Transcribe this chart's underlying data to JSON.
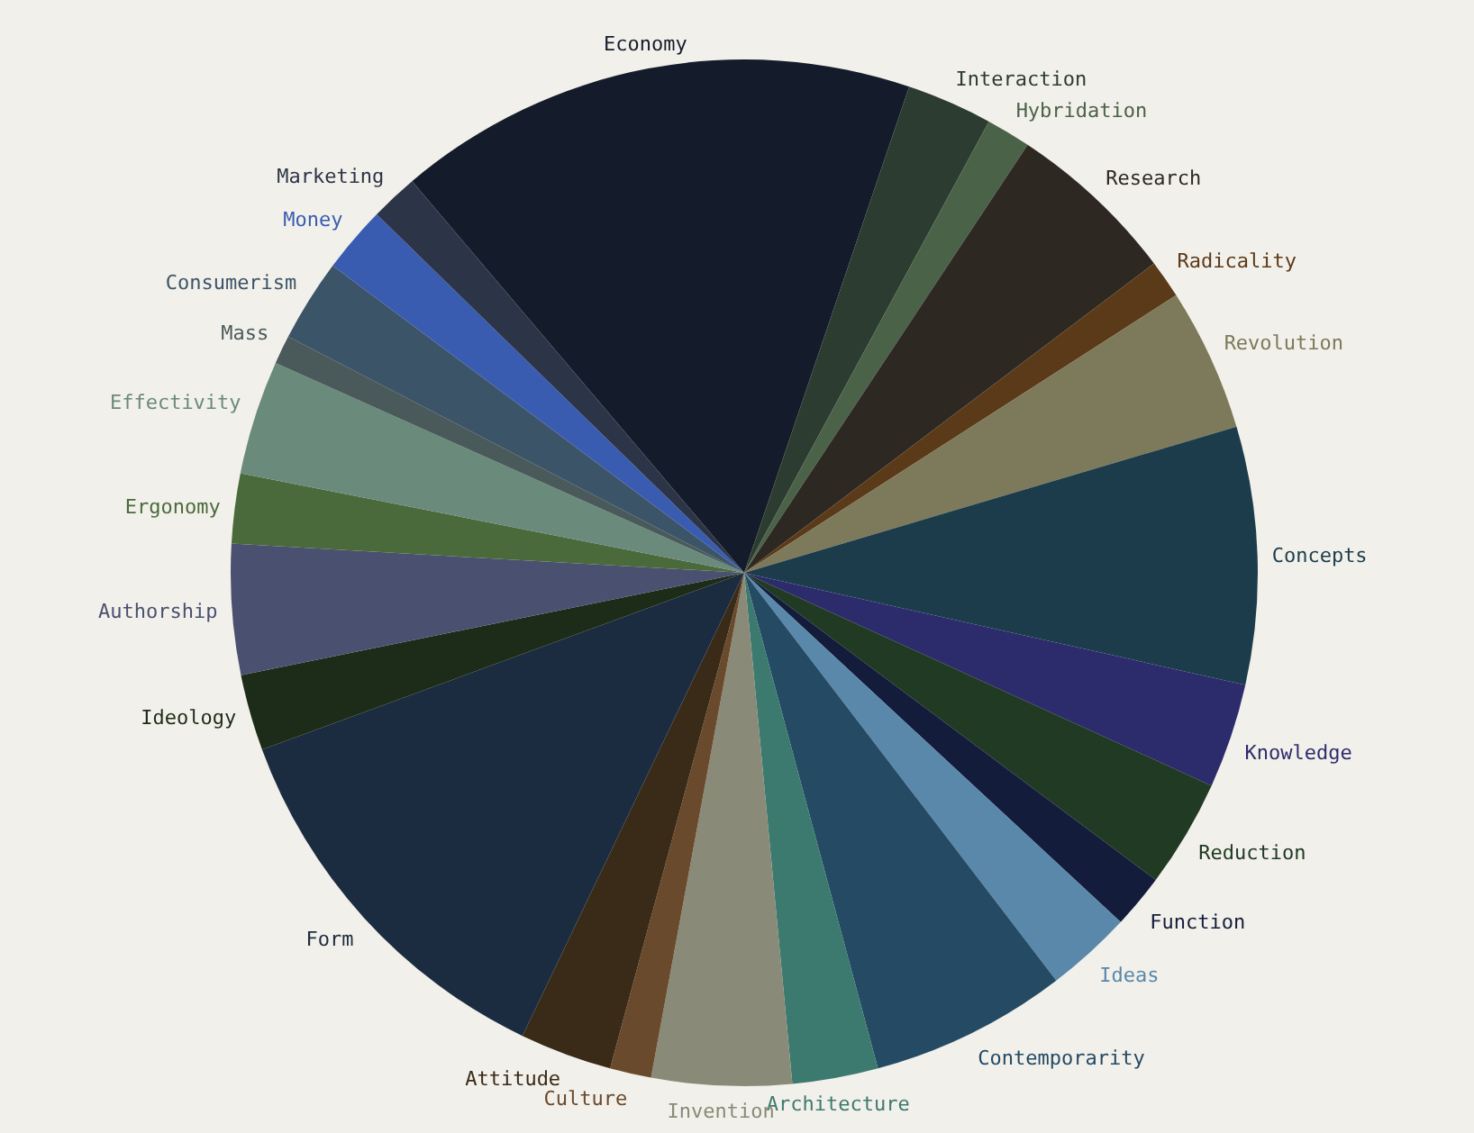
{
  "chart_data": {
    "type": "pie",
    "categories": [
      "Economy",
      "Interaction",
      "Hybridation",
      "Research",
      "Radicality",
      "Revolution",
      "Concepts",
      "Knowledge",
      "Reduction",
      "Function",
      "Ideas",
      "Contemporarity",
      "Architecture",
      "Invention",
      "Culture",
      "Attitude",
      "Form",
      "Ideology",
      "Authorship",
      "Ergonomy",
      "Effectivity",
      "Mass",
      "Consumerism",
      "Money",
      "Marketing"
    ],
    "values": [
      16.4,
      2.7,
      1.4,
      5.4,
      1.2,
      4.5,
      8.1,
      3.3,
      3.4,
      1.7,
      2.7,
      6.2,
      2.7,
      4.4,
      1.3,
      2.9,
      12.3,
      2.4,
      4.1,
      2.2,
      3.6,
      0.9,
      2.6,
      2.1,
      1.5
    ],
    "colors": [
      "#141c2c",
      "#2c3c30",
      "#4a6248",
      "#2e2822",
      "#5a3a18",
      "#7c7a5a",
      "#1c3c4c",
      "#2c2c6c",
      "#203a24",
      "#141c3c",
      "#5a88aa",
      "#244a64",
      "#3c7a70",
      "#8a8a78",
      "#6a4a2c",
      "#3a2a18",
      "#1c2c40",
      "#1c2c18",
      "#4a5070",
      "#4a6a3c",
      "#6a8a7c",
      "#4a5a5a",
      "#3c5468",
      "#3a5cb0",
      "#2c3448"
    ]
  }
}
